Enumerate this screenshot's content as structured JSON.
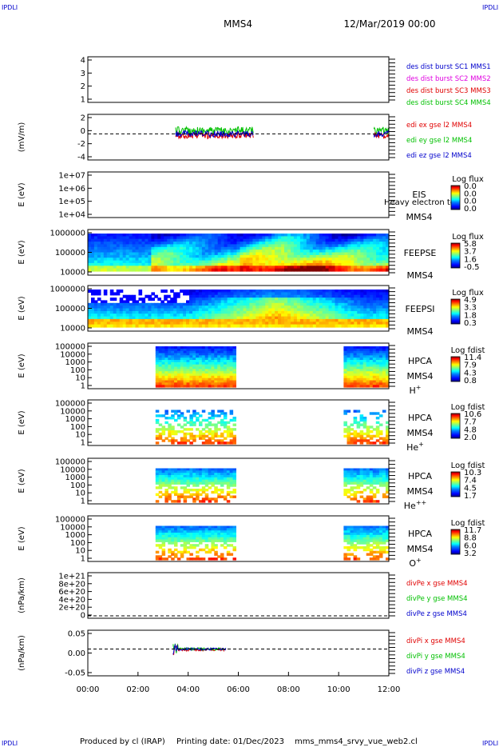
{
  "corner_labels": [
    "IPDLI",
    "IPDLI",
    "IPDLI",
    "IPDLI"
  ],
  "header": {
    "spacecraft": "MMS4",
    "datetime": "12/Mar/2019 00:00"
  },
  "footer": {
    "produced_by": "Produced by cl (IRAP)",
    "printing_date": "Printing date: 01/Dec/2023",
    "script_name": "mms_mms4_srvy_vue_web2.cl"
  },
  "colors": {
    "red": "#e00000",
    "green": "#00c000",
    "blue": "#0000cc",
    "magenta": "#e000e0"
  },
  "colorbar_colors": [
    "#00007f",
    "#0000ff",
    "#0080ff",
    "#00ffff",
    "#80ff80",
    "#ffff00",
    "#ff8000",
    "#ff0000",
    "#7f0000"
  ],
  "x_axis": {
    "ticks": [
      "00:00",
      "02:00",
      "04:00",
      "06:00",
      "08:00",
      "10:00",
      "12:00"
    ],
    "range_hours": [
      0,
      12
    ]
  },
  "chart_data": [
    {
      "id": "p1",
      "type": "line",
      "ylabel": "",
      "yticks": [
        "4",
        "3",
        "2",
        "1"
      ],
      "ylim": [
        1,
        4
      ],
      "legend": [
        {
          "text": "des dist burst SC1 MMS1",
          "color": "blue"
        },
        {
          "text": "des dist burst SC2 MMS2",
          "color": "magenta"
        },
        {
          "text": "des dist burst SC3 MMS3",
          "color": "red"
        },
        {
          "text": "des dist burst SC4 MMS4",
          "color": "green"
        }
      ]
    },
    {
      "id": "p2",
      "type": "line",
      "ylabel": "(mV/m)",
      "yticks": [
        "2",
        "0",
        "-2",
        "-4"
      ],
      "ylim": [
        -4,
        3
      ],
      "zero_line": true,
      "legend": [
        {
          "text": "edi ex gse l2 MMS4",
          "color": "red"
        },
        {
          "text": "edi ey gse l2 MMS4",
          "color": "green"
        },
        {
          "text": "edi ez gse l2 MMS4",
          "color": "blue"
        }
      ],
      "segments": [
        {
          "x_hours": [
            3.5,
            6.6
          ]
        },
        {
          "x_hours": [
            11.4,
            12.0
          ]
        }
      ]
    },
    {
      "id": "p3",
      "type": "heatmap",
      "ylabel": "E (eV)",
      "yticks": [
        "1e+07",
        "1e+06",
        "1e+05",
        "1e+04"
      ],
      "instrument": [
        "EIS",
        "MMS4"
      ],
      "overlap_text": "Heavy electron to",
      "cb_title": "Log flux",
      "cb_ticks": [
        "0.0",
        "0.0",
        "0.0",
        "0.0"
      ]
    },
    {
      "id": "p4",
      "type": "heatmap",
      "ylabel": "E (eV)",
      "yticks": [
        "1000000",
        "100000",
        "10000"
      ],
      "instrument": [
        "FEEPSE",
        "MMS4"
      ],
      "cb_title": "Log flux",
      "cb_ticks": [
        "5.8",
        "3.7",
        "1.6",
        "-0.5"
      ],
      "x_hours": [
        0,
        12
      ]
    },
    {
      "id": "p5",
      "type": "heatmap",
      "ylabel": "E (eV)",
      "yticks": [
        "1000000",
        "100000",
        "10000"
      ],
      "instrument": [
        "FEEPSI",
        "MMS4"
      ],
      "cb_title": "Log flux",
      "cb_ticks": [
        "4.9",
        "3.3",
        "1.8",
        "0.3"
      ],
      "x_hours": [
        0,
        12
      ]
    },
    {
      "id": "p6",
      "type": "heatmap",
      "ylabel": "E (eV)",
      "yticks": [
        "100000",
        "10000",
        "1000",
        "100",
        "10",
        "1"
      ],
      "instrument": [
        "HPCA",
        "MMS4"
      ],
      "species": {
        "base": "H",
        "sup": "+"
      },
      "cb_title": "Log fdist",
      "cb_ticks": [
        "11.4",
        "7.9",
        "4.3",
        "0.8"
      ],
      "segments": [
        {
          "x_hours": [
            2.7,
            5.9
          ]
        },
        {
          "x_hours": [
            10.2,
            12.0
          ]
        }
      ]
    },
    {
      "id": "p7",
      "type": "heatmap",
      "ylabel": "E (eV)",
      "yticks": [
        "100000",
        "10000",
        "1000",
        "100",
        "10",
        "1"
      ],
      "instrument": [
        "HPCA",
        "MMS4"
      ],
      "species": {
        "base": "He",
        "sup": "+"
      },
      "cb_title": "Log fdist",
      "cb_ticks": [
        "10.6",
        "7.7",
        "4.8",
        "2.0"
      ],
      "segments": [
        {
          "x_hours": [
            2.7,
            5.9
          ]
        },
        {
          "x_hours": [
            10.2,
            12.0
          ]
        }
      ]
    },
    {
      "id": "p8",
      "type": "heatmap",
      "ylabel": "E (eV)",
      "yticks": [
        "100000",
        "10000",
        "1000",
        "100",
        "10",
        "1"
      ],
      "instrument": [
        "HPCA",
        "MMS4"
      ],
      "species": {
        "base": "He",
        "sup": "++"
      },
      "cb_title": "Log fdist",
      "cb_ticks": [
        "10.3",
        "7.4",
        "4.5",
        "1.7"
      ],
      "segments": [
        {
          "x_hours": [
            2.7,
            5.9
          ]
        },
        {
          "x_hours": [
            10.2,
            12.0
          ]
        }
      ]
    },
    {
      "id": "p9",
      "type": "heatmap",
      "ylabel": "E (eV)",
      "yticks": [
        "100000",
        "10000",
        "1000",
        "100",
        "10",
        "1"
      ],
      "instrument": [
        "HPCA",
        "MMS4"
      ],
      "species": {
        "base": "O",
        "sup": "+"
      },
      "cb_title": "Log fdist",
      "cb_ticks": [
        "11.7",
        "8.8",
        "6.0",
        "3.2"
      ],
      "segments": [
        {
          "x_hours": [
            2.7,
            5.9
          ]
        },
        {
          "x_hours": [
            10.2,
            12.0
          ]
        }
      ]
    },
    {
      "id": "p10",
      "type": "line",
      "ylabel": "(nPa/km)",
      "yticks": [
        "1e+21",
        "8e+20",
        "6e+20",
        "4e+20",
        "2e+20",
        "0"
      ],
      "ylim": [
        0,
        1e+21
      ],
      "legend": [
        {
          "text": "divPe x gse MMS4",
          "color": "red"
        },
        {
          "text": "divPe y gse MMS4",
          "color": "green"
        },
        {
          "text": "divPe z gse MMS4",
          "color": "blue"
        }
      ]
    },
    {
      "id": "p11",
      "type": "line",
      "ylabel": "(nPa/km)",
      "yticks": [
        "0.05",
        "0.00",
        "-0.05"
      ],
      "ylim": [
        -0.1,
        0.07
      ],
      "zero_line": true,
      "legend": [
        {
          "text": "divPi x gse MMS4",
          "color": "red"
        },
        {
          "text": "divPi y gse MMS4",
          "color": "green"
        },
        {
          "text": "divPi z gse MMS4",
          "color": "blue"
        }
      ],
      "segments": [
        {
          "x_hours": [
            3.4,
            5.5
          ]
        }
      ]
    }
  ]
}
